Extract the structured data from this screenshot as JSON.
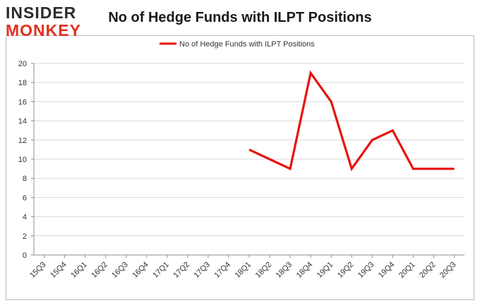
{
  "logo": {
    "line1": "INSIDER",
    "line2": "MONKEY"
  },
  "chart_data": {
    "type": "line",
    "title": "No of Hedge Funds with ILPT Positions",
    "xlabel": "",
    "ylabel": "",
    "categories": [
      "15Q3",
      "15Q4",
      "16Q1",
      "16Q2",
      "16Q3",
      "16Q4",
      "17Q1",
      "17Q2",
      "17Q3",
      "17Q4",
      "18Q1",
      "18Q2",
      "18Q3",
      "18Q4",
      "19Q1",
      "19Q2",
      "19Q3",
      "19Q4",
      "20Q1",
      "20Q2",
      "20Q3"
    ],
    "series": [
      {
        "name": "No of Hedge Funds with ILPT Positions",
        "color": "#e8120c",
        "values": [
          null,
          null,
          null,
          null,
          null,
          null,
          null,
          null,
          null,
          null,
          11,
          10,
          9,
          19,
          16,
          9,
          12,
          13,
          9,
          9,
          9
        ]
      }
    ],
    "ylim": [
      0,
      20
    ],
    "yticks": [
      0,
      2,
      4,
      6,
      8,
      10,
      12,
      14,
      16,
      18,
      20
    ],
    "grid": true,
    "legend_position": "top-center"
  }
}
